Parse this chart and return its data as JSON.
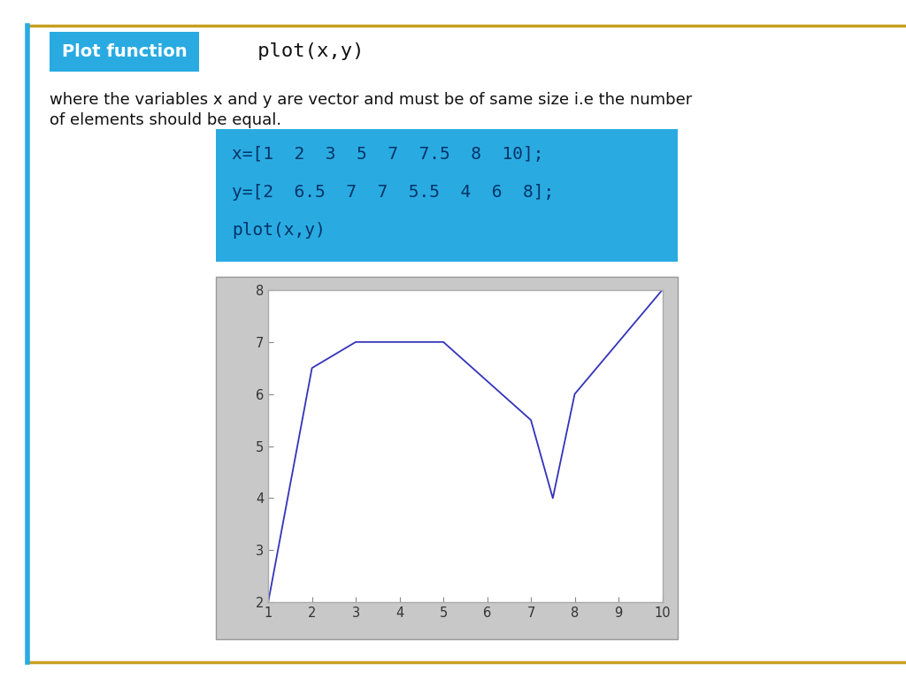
{
  "x": [
    1,
    2,
    3,
    5,
    7,
    7.5,
    8,
    10
  ],
  "y": [
    2,
    6.5,
    7,
    7,
    5.5,
    4,
    6,
    8
  ],
  "line_color": "#3333bb",
  "plot_bg_color": "#c8c8c8",
  "plot_face_color": "#ffffff",
  "header_bg_color": "#29abe2",
  "header_text": "Plot function",
  "header_code": "   plot(x,y)",
  "description_line1": "where the variables x and y are vector and must be of same size i.e the number",
  "description_line2": "of elements should be equal.",
  "code_block_bg": "#29abe2",
  "code_line1": "x=[1  2  3  5  7  7.5  8  10];",
  "code_line2": "y=[2  6.5  7  7  5.5  4  6  8];",
  "code_line3": "plot(x,y)",
  "top_border_color": "#c8a020",
  "bottom_border_color": "#c8a020",
  "left_border_color": "#29abe2",
  "xlim": [
    1,
    10
  ],
  "ylim": [
    2,
    8
  ],
  "xticks": [
    1,
    2,
    3,
    4,
    5,
    6,
    7,
    8,
    9,
    10
  ],
  "yticks": [
    2,
    3,
    4,
    5,
    6,
    7,
    8
  ],
  "fig_width": 10.24,
  "fig_height": 7.68,
  "dpi": 100
}
